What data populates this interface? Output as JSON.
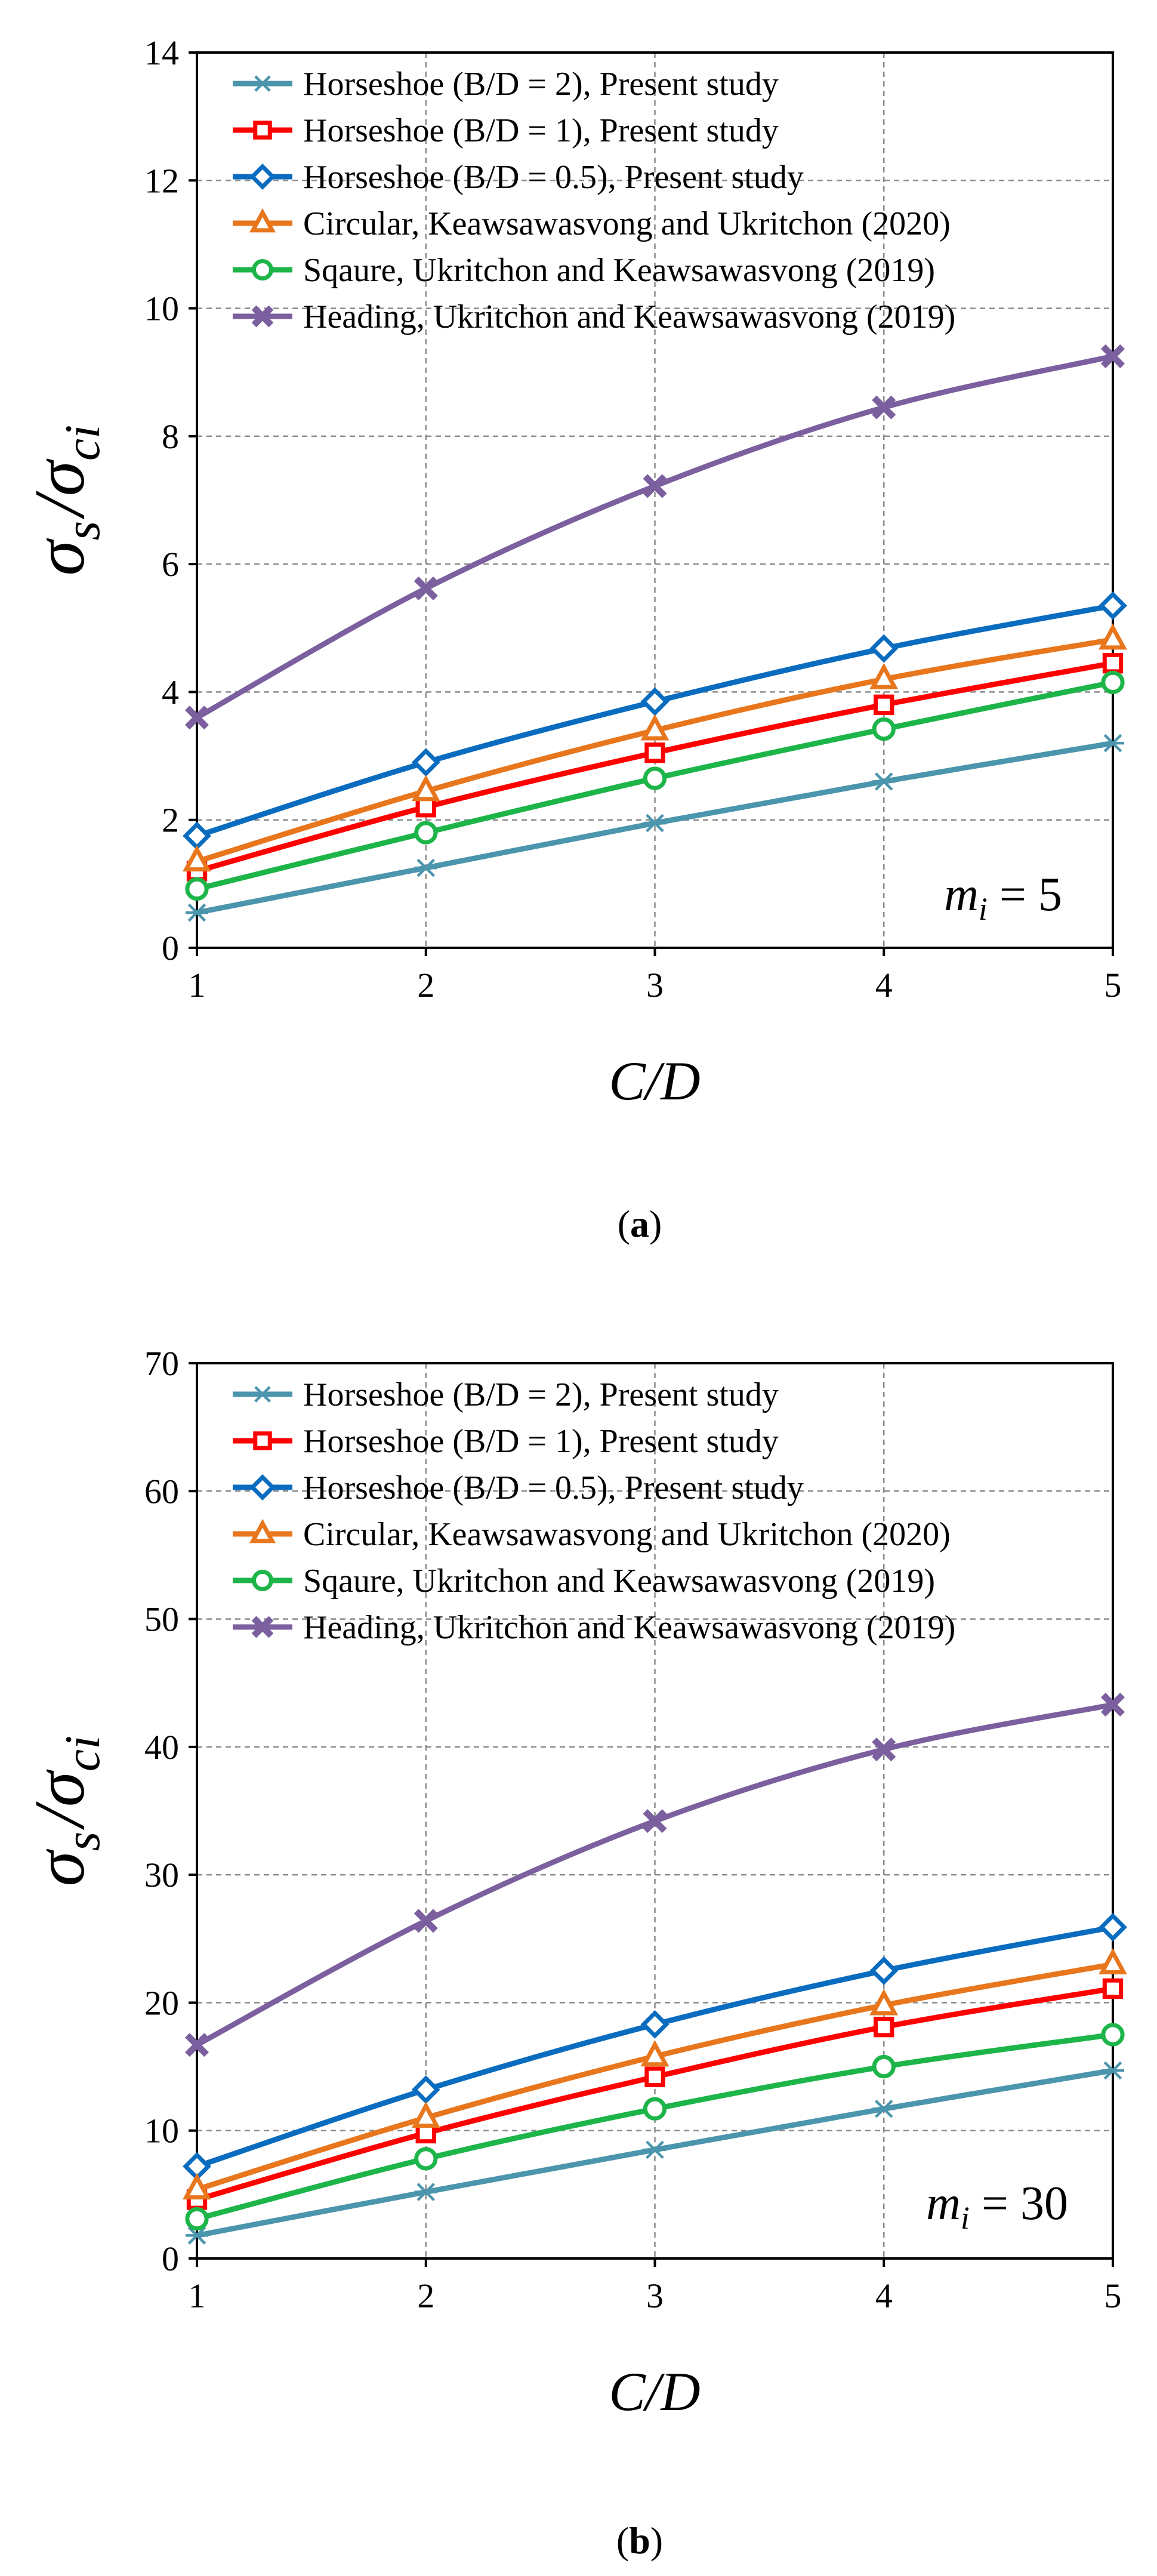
{
  "chart_data": [
    {
      "type": "line",
      "id": "a",
      "panel_label": "a",
      "xlabel": "C/D",
      "ylabel_main": "σ",
      "ylabel_sub_s": "s",
      "ylabel_div": "/",
      "ylabel_sub_ci": "ci",
      "annotation": {
        "var": "m",
        "sub": "i",
        "text": " = 5"
      },
      "xlim": [
        1,
        5
      ],
      "ylim": [
        0,
        14
      ],
      "xticks": [
        1,
        2,
        3,
        4,
        5
      ],
      "yticks": [
        0,
        2,
        4,
        6,
        8,
        10,
        12,
        14
      ],
      "x": [
        1,
        2,
        3,
        4,
        5
      ],
      "series": [
        {
          "name": "Horseshoe (B/D = 2), Present study",
          "color": "#4b95ad",
          "marker": "star",
          "values": [
            0.55,
            1.25,
            1.95,
            2.6,
            3.2
          ]
        },
        {
          "name": "Horseshoe (B/D = 1), Present study",
          "color": "#ff0000",
          "marker": "square",
          "values": [
            1.2,
            2.2,
            3.05,
            3.8,
            4.45
          ]
        },
        {
          "name": "Horseshoe (B/D = 0.5), Present study",
          "color": "#0a6cbf",
          "marker": "diamond",
          "values": [
            1.75,
            2.9,
            3.85,
            4.68,
            5.35
          ]
        },
        {
          "name": "Circular, Keawsawasvong and Ukritchon (2020)",
          "color": "#e8761c",
          "marker": "triangle",
          "values": [
            1.35,
            2.45,
            3.4,
            4.2,
            4.82
          ]
        },
        {
          "name": "Sqaure, Ukritchon and Keawsawasvong (2019)",
          "color": "#1db54a",
          "marker": "circle",
          "values": [
            0.92,
            1.8,
            2.65,
            3.42,
            4.15
          ]
        },
        {
          "name": "Heading, Ukritchon and Keawsawasvong (2019)",
          "color": "#7b5f9e",
          "marker": "x",
          "values": [
            3.6,
            5.62,
            7.22,
            8.45,
            9.25
          ]
        }
      ]
    },
    {
      "type": "line",
      "id": "b",
      "panel_label": "b",
      "xlabel": "C/D",
      "ylabel_main": "σ",
      "ylabel_sub_s": "s",
      "ylabel_div": "/",
      "ylabel_sub_ci": "ci",
      "annotation": {
        "var": "m",
        "sub": "i",
        "text": " = 30"
      },
      "xlim": [
        1,
        5
      ],
      "ylim": [
        0,
        70
      ],
      "xticks": [
        1,
        2,
        3,
        4,
        5
      ],
      "yticks": [
        0,
        10,
        20,
        30,
        40,
        50,
        60,
        70
      ],
      "x": [
        1,
        2,
        3,
        4,
        5
      ],
      "series": [
        {
          "name": "Horseshoe (B/D = 2), Present study",
          "color": "#4b95ad",
          "marker": "star",
          "values": [
            1.8,
            5.2,
            8.5,
            11.7,
            14.7
          ]
        },
        {
          "name": "Horseshoe (B/D = 1), Present study",
          "color": "#ff0000",
          "marker": "square",
          "values": [
            4.6,
            9.8,
            14.2,
            18.1,
            21.1
          ]
        },
        {
          "name": "Horseshoe (B/D = 0.5), Present study",
          "color": "#0a6cbf",
          "marker": "diamond",
          "values": [
            7.2,
            13.2,
            18.3,
            22.5,
            25.9
          ]
        },
        {
          "name": "Circular, Keawsawasvong and Ukritchon (2020)",
          "color": "#e8761c",
          "marker": "triangle",
          "values": [
            5.4,
            11.0,
            15.8,
            19.8,
            23.0
          ]
        },
        {
          "name": "Sqaure, Ukritchon and Keawsawasvong (2019)",
          "color": "#1db54a",
          "marker": "circle",
          "values": [
            3.1,
            7.8,
            11.7,
            15.0,
            17.5
          ]
        },
        {
          "name": "Heading, Ukritchon and Keawsawasvong (2019)",
          "color": "#7b5f9e",
          "marker": "x",
          "values": [
            16.7,
            26.4,
            34.2,
            39.8,
            43.3
          ]
        }
      ]
    }
  ]
}
